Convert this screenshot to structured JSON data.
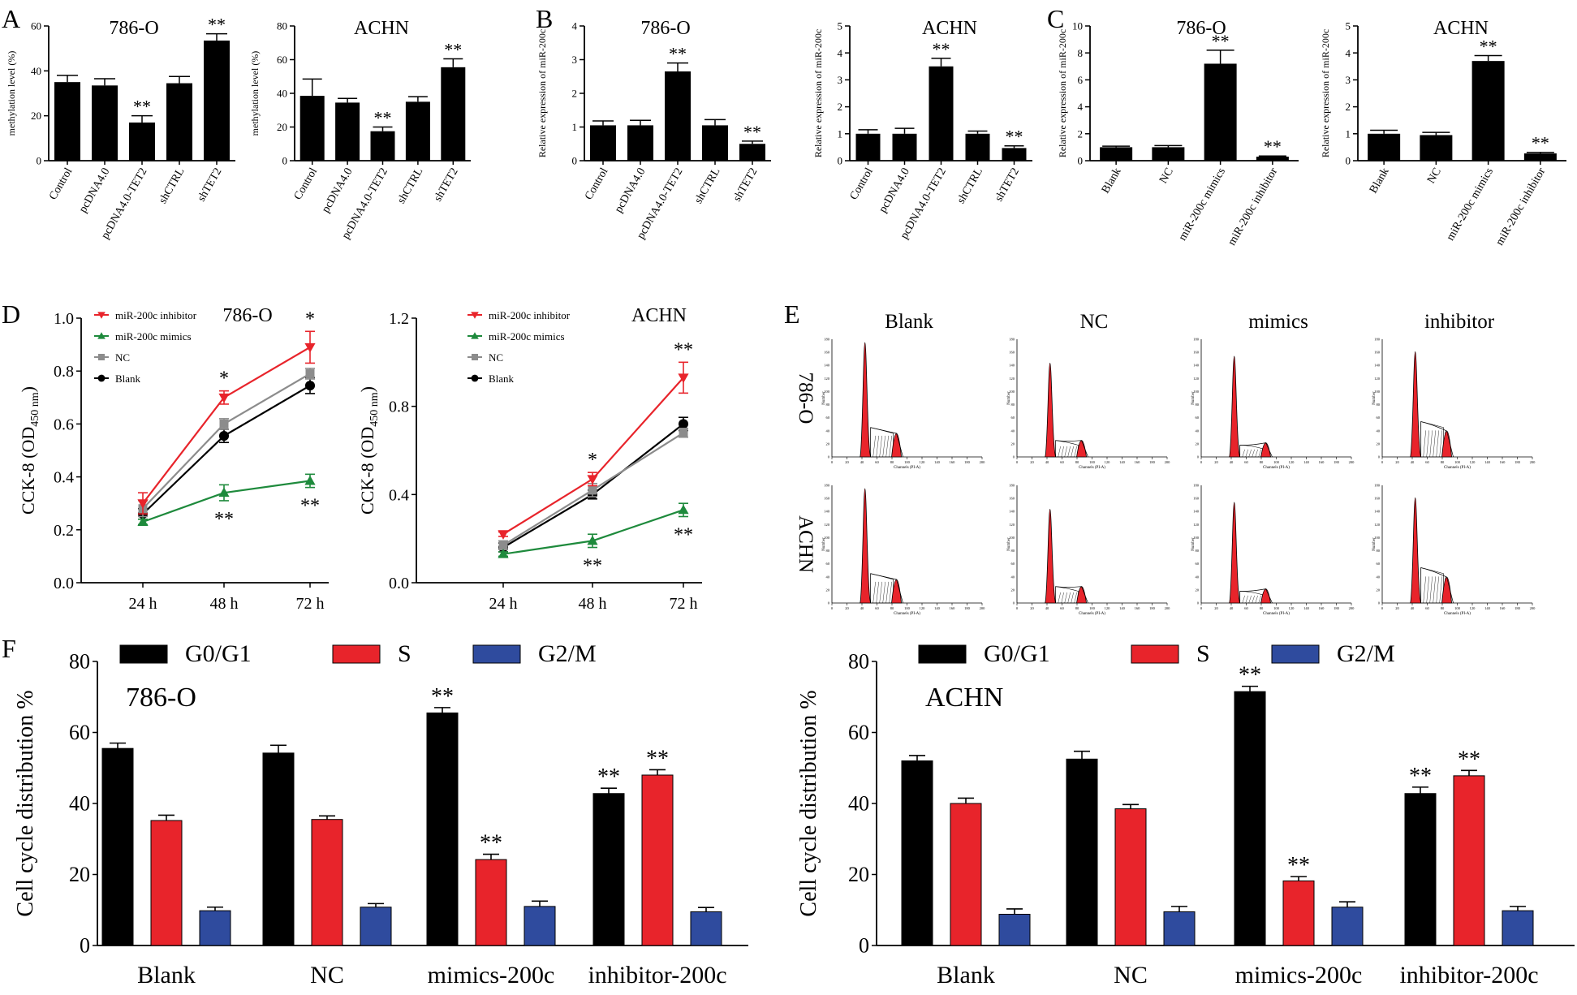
{
  "chart_data": [
    {
      "id": "A1",
      "panel_letter": "A",
      "type": "bar",
      "title": "786-O",
      "ylabel": "methylation level (%)",
      "ylim": [
        0,
        60
      ],
      "yticks": [
        0,
        20,
        40,
        60
      ],
      "categories": [
        "Control",
        "pcDNA4.0",
        "pcDNA4.0-TET2",
        "shCTRL",
        "shTET2"
      ],
      "values": [
        35,
        33.5,
        17,
        34.5,
        53.5
      ],
      "errors": [
        3,
        3,
        3,
        3,
        3
      ],
      "stars": [
        "",
        "",
        "**",
        "",
        "**"
      ]
    },
    {
      "id": "A2",
      "type": "bar",
      "title": "ACHN",
      "ylabel": "methylation level (%)",
      "ylim": [
        0,
        80
      ],
      "yticks": [
        0,
        20,
        40,
        60,
        80
      ],
      "categories": [
        "Control",
        "pcDNA4.0",
        "pcDNA4.0-TET2",
        "shCTRL",
        "shTET2"
      ],
      "values": [
        38.5,
        34.5,
        17.5,
        35,
        55.5
      ],
      "errors": [
        10,
        2.5,
        2.5,
        3,
        5
      ],
      "stars": [
        "",
        "",
        "**",
        "",
        "**"
      ]
    },
    {
      "id": "B1",
      "panel_letter": "B",
      "type": "bar",
      "title": "786-O",
      "ylabel": "Relative expression of miR-200c",
      "ylim": [
        0,
        4
      ],
      "yticks": [
        0,
        1,
        2,
        3,
        4
      ],
      "categories": [
        "Control",
        "pcDNA4.0",
        "pcDNA4.0-TET2",
        "shCTRL",
        "shTET2"
      ],
      "values": [
        1.05,
        1.05,
        2.65,
        1.05,
        0.5
      ],
      "errors": [
        0.13,
        0.15,
        0.25,
        0.17,
        0.08
      ],
      "stars": [
        "",
        "",
        "**",
        "",
        "**"
      ]
    },
    {
      "id": "B2",
      "type": "bar",
      "title": "ACHN",
      "ylabel": "Relative expression of miR-200c",
      "ylim": [
        0,
        5
      ],
      "yticks": [
        0,
        1,
        2,
        3,
        4,
        5
      ],
      "categories": [
        "Control",
        "pcDNA4.0",
        "pcDNA4.0-TET2",
        "shCTRL",
        "shTET2"
      ],
      "values": [
        1.0,
        1.0,
        3.5,
        1.0,
        0.47
      ],
      "errors": [
        0.15,
        0.2,
        0.3,
        0.1,
        0.08
      ],
      "stars": [
        "",
        "",
        "**",
        "",
        "**"
      ]
    },
    {
      "id": "C1",
      "panel_letter": "C",
      "type": "bar",
      "title": "786-O",
      "ylabel": "Relative expression of miR-200c",
      "ylim": [
        0,
        10
      ],
      "yticks": [
        0,
        2,
        4,
        6,
        8,
        10
      ],
      "categories": [
        "Blank",
        "NC",
        "miR-200c mimics",
        "miR-200c inhibitor"
      ],
      "values": [
        1.0,
        1.0,
        7.2,
        0.3
      ],
      "errors": [
        0.08,
        0.12,
        1.0,
        0.05
      ],
      "stars": [
        "",
        "",
        "**",
        "**"
      ]
    },
    {
      "id": "C2",
      "type": "bar",
      "title": "ACHN",
      "ylabel": "Relative expression of miR-200c",
      "ylim": [
        0,
        5
      ],
      "yticks": [
        0,
        1,
        2,
        3,
        4,
        5
      ],
      "categories": [
        "Blank",
        "NC",
        "miR-200c mimics",
        "miR-200c inhibitor"
      ],
      "values": [
        1.0,
        0.95,
        3.7,
        0.27
      ],
      "errors": [
        0.13,
        0.1,
        0.2,
        0.04
      ],
      "stars": [
        "",
        "",
        "**",
        "**"
      ]
    },
    {
      "id": "D1",
      "panel_letter": "D",
      "type": "line",
      "title": "786-O",
      "ylabel": "CCK-8 (OD",
      "ylabel_sub": "450 nm",
      "ylabel_end": ")",
      "ylim": [
        0,
        1.0
      ],
      "yticks": [
        "0.0",
        "0.2",
        "0.4",
        "0.6",
        "0.8",
        "1.0"
      ],
      "x": [
        "24 h",
        "48 h",
        "72 h"
      ],
      "series": [
        {
          "name": "miR-200c inhibitor",
          "color": "#e8242b",
          "marker": "tri-down",
          "values": [
            0.3,
            0.7,
            0.89
          ],
          "errors": [
            0.04,
            0.025,
            0.06
          ]
        },
        {
          "name": "miR-200c mimics",
          "color": "#1e8a3c",
          "marker": "tri-up",
          "values": [
            0.23,
            0.34,
            0.385
          ],
          "errors": [
            0.01,
            0.03,
            0.025
          ]
        },
        {
          "name": "NC",
          "color": "#8c8c8c",
          "marker": "square",
          "values": [
            0.28,
            0.6,
            0.79
          ],
          "errors": [
            0.03,
            0.02,
            0.02
          ]
        },
        {
          "name": "Blank",
          "color": "#000000",
          "marker": "circle",
          "values": [
            0.26,
            0.555,
            0.745
          ],
          "errors": [
            0.02,
            0.025,
            0.03
          ]
        }
      ],
      "stars_top": [
        "",
        "*",
        "*"
      ],
      "stars_bottom": [
        "",
        "**",
        "**"
      ]
    },
    {
      "id": "D2",
      "type": "line",
      "title": "ACHN",
      "ylabel": "CCK-8 (OD",
      "ylabel_sub": "450 nm",
      "ylabel_end": ")",
      "ylim": [
        0,
        1.2
      ],
      "yticks": [
        "0.0",
        "0.4",
        "0.8",
        "1.2"
      ],
      "x": [
        "24 h",
        "48 h",
        "72 h"
      ],
      "series": [
        {
          "name": "miR-200c inhibitor",
          "color": "#e8242b",
          "marker": "tri-down",
          "values": [
            0.22,
            0.47,
            0.93
          ],
          "errors": [
            0.01,
            0.03,
            0.07
          ]
        },
        {
          "name": "miR-200c mimics",
          "color": "#1e8a3c",
          "marker": "tri-up",
          "values": [
            0.13,
            0.19,
            0.33
          ],
          "errors": [
            0.01,
            0.03,
            0.03
          ]
        },
        {
          "name": "NC",
          "color": "#8c8c8c",
          "marker": "square",
          "values": [
            0.17,
            0.42,
            0.68
          ],
          "errors": [
            0.02,
            0.03,
            0.02
          ]
        },
        {
          "name": "Blank",
          "color": "#000000",
          "marker": "circle",
          "values": [
            0.16,
            0.4,
            0.72
          ],
          "errors": [
            0.02,
            0.02,
            0.03
          ]
        }
      ],
      "stars_top": [
        "",
        "*",
        "**"
      ],
      "stars_bottom": [
        "",
        "**",
        "**"
      ]
    },
    {
      "id": "F1",
      "panel_letter": "F",
      "type": "bar",
      "title": "786-O",
      "ylabel": "Cell cycle distribution %",
      "ylim": [
        0,
        80
      ],
      "yticks": [
        0,
        20,
        40,
        60,
        80
      ],
      "categories": [
        "Blank",
        "NC",
        "mimics-200c",
        "inhibitor-200c"
      ],
      "series": [
        {
          "name": "G0/G1",
          "color": "#000000",
          "values": [
            55.5,
            54.2,
            65.5,
            42.8
          ],
          "errors": [
            1.5,
            2.2,
            1.5,
            1.5
          ],
          "stars": [
            "",
            "",
            "**",
            "**"
          ]
        },
        {
          "name": "S",
          "color": "#e8242b",
          "values": [
            35.2,
            35.5,
            24.2,
            48.0
          ],
          "errors": [
            1.5,
            1.0,
            1.5,
            1.5
          ],
          "stars": [
            "",
            "",
            "**",
            "**"
          ]
        },
        {
          "name": "G2/M",
          "color": "#2f4b9e",
          "values": [
            9.8,
            10.8,
            11.0,
            9.5
          ],
          "errors": [
            1.0,
            1.0,
            1.5,
            1.2
          ],
          "stars": [
            "",
            "",
            "",
            ""
          ]
        }
      ]
    },
    {
      "id": "F2",
      "type": "bar",
      "title": "ACHN",
      "ylabel": "Cell cycle distribution %",
      "ylim": [
        0,
        80
      ],
      "yticks": [
        0,
        20,
        40,
        60,
        80
      ],
      "categories": [
        "Blank",
        "NC",
        "mimics-200c",
        "inhibitor-200c"
      ],
      "series": [
        {
          "name": "G0/G1",
          "color": "#000000",
          "values": [
            52.0,
            52.5,
            71.5,
            42.8
          ],
          "errors": [
            1.5,
            2.2,
            1.5,
            1.8
          ],
          "stars": [
            "",
            "",
            "**",
            "**"
          ]
        },
        {
          "name": "S",
          "color": "#e8242b",
          "values": [
            40.0,
            38.5,
            18.2,
            47.8
          ],
          "errors": [
            1.5,
            1.2,
            1.2,
            1.5
          ],
          "stars": [
            "",
            "",
            "**",
            "**"
          ]
        },
        {
          "name": "G2/M",
          "color": "#2f4b9e",
          "values": [
            8.8,
            9.5,
            10.8,
            9.8
          ],
          "errors": [
            1.5,
            1.5,
            1.5,
            1.2
          ],
          "stars": [
            "",
            "",
            "",
            ""
          ]
        }
      ]
    }
  ],
  "panel_e": {
    "letter": "E",
    "columns": [
      "Blank",
      "NC",
      "mimics",
      "inhibitor"
    ],
    "rows": [
      "786-O",
      "ACHN"
    ],
    "axis_text": "Channels (PI-A)",
    "y_text": "Number",
    "tick_labels": [
      "0",
      "20",
      "40",
      "60",
      "80",
      "100",
      "120",
      "140",
      "160",
      "180",
      "200"
    ],
    "mini_yticks": [
      "0",
      "20",
      "40",
      "60",
      "80",
      "100",
      "120",
      "140",
      "160",
      "180"
    ],
    "peak_color": "#e8242b"
  }
}
